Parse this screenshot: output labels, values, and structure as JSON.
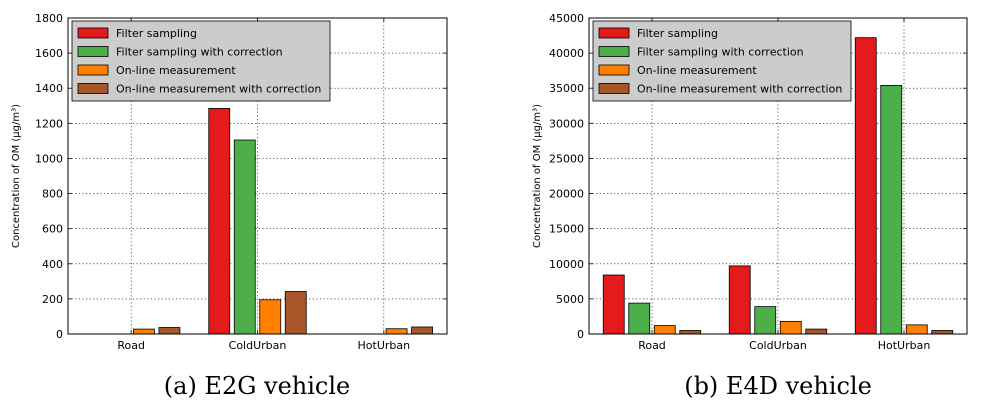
{
  "chart_data": [
    {
      "type": "bar",
      "caption": "(a) E2G vehicle",
      "ylabel": "Concentration of OM (µg/m³)",
      "categories": [
        "Road",
        "ColdUrban",
        "HotUrban"
      ],
      "ylim": [
        0,
        1800
      ],
      "yticks": [
        0,
        200,
        400,
        600,
        800,
        1000,
        1200,
        1400,
        1600,
        1800
      ],
      "grid": true,
      "legend_position": "top-left",
      "series": [
        {
          "name": "Filter sampling",
          "color": "#e41a1c",
          "values": [
            0,
            1285,
            0
          ]
        },
        {
          "name": "Filter sampling with correction",
          "color": "#4daf4a",
          "values": [
            0,
            1105,
            0
          ]
        },
        {
          "name": "On-line measurement",
          "color": "#ff7f00",
          "values": [
            28,
            195,
            30
          ]
        },
        {
          "name": "On-line measurement with correction",
          "color": "#a65628",
          "values": [
            37,
            242,
            40
          ]
        }
      ]
    },
    {
      "type": "bar",
      "caption": "(b) E4D vehicle",
      "ylabel": "Concentration of OM (µg/m³)",
      "categories": [
        "Road",
        "ColdUrban",
        "HotUrban"
      ],
      "ylim": [
        0,
        45000
      ],
      "yticks": [
        0,
        5000,
        10000,
        15000,
        20000,
        25000,
        30000,
        35000,
        40000,
        45000
      ],
      "grid": true,
      "legend_position": "top-left",
      "series": [
        {
          "name": "Filter sampling",
          "color": "#e41a1c",
          "values": [
            8400,
            9700,
            42200
          ]
        },
        {
          "name": "Filter sampling with correction",
          "color": "#4daf4a",
          "values": [
            4400,
            3900,
            35400
          ]
        },
        {
          "name": "On-line measurement",
          "color": "#ff7f00",
          "values": [
            1200,
            1800,
            1300
          ]
        },
        {
          "name": "On-line measurement with correction",
          "color": "#a65628",
          "values": [
            500,
            700,
            500
          ]
        }
      ]
    }
  ]
}
